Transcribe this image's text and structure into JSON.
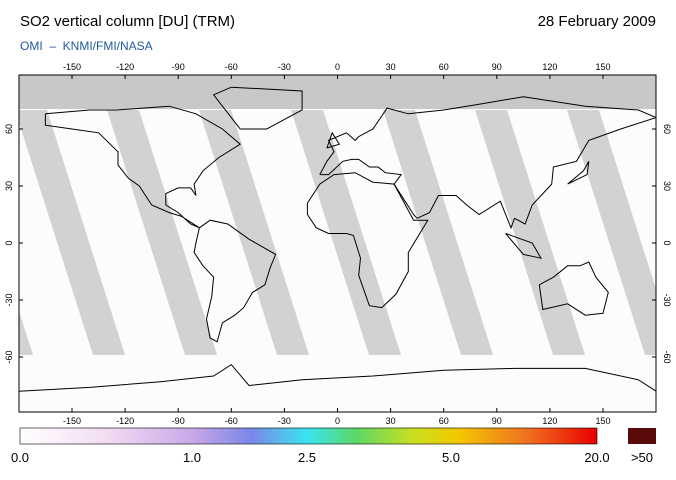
{
  "header": {
    "title": "SO2 vertical column [DU] (TRM)",
    "date": "28 February 2009",
    "source": "OMI  –  KNMI/FMI/NASA"
  },
  "map": {
    "lon_ticks": [
      -150,
      -120,
      -90,
      -60,
      -30,
      0,
      30,
      60,
      90,
      120,
      150
    ],
    "lat_ticks": [
      60,
      30,
      0,
      -30,
      -60
    ]
  },
  "colorbar": {
    "labels": [
      "0.0",
      "1.0",
      "2.5",
      "5.0",
      "20.0"
    ],
    "overflow": ">50"
  }
}
